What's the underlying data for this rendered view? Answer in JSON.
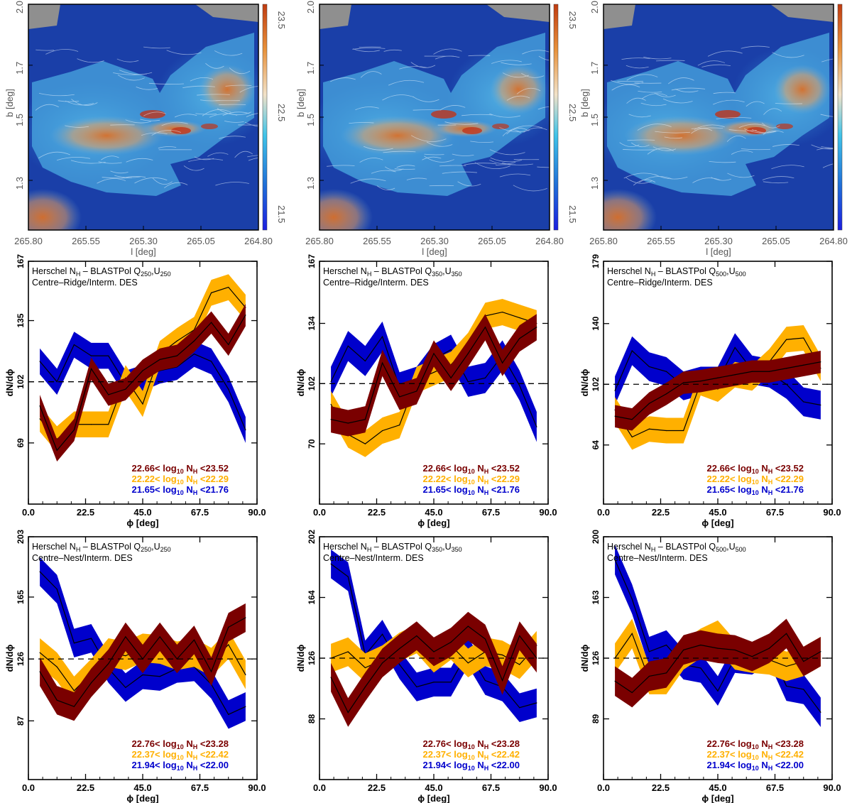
{
  "map_colorbar": {
    "min_label": "21.5",
    "mid_label": "22.5",
    "max_label": "23.5",
    "colors": [
      "#1b1ee0",
      "#1f6fd8",
      "#3fc3e8",
      "#f2e2c8",
      "#e8913a",
      "#c03b10"
    ]
  },
  "map_axes": {
    "xlabel": "l [deg]",
    "ylabel": "b [deg]",
    "xticks": [
      "265.80",
      "265.55",
      "265.30",
      "265.05",
      "264.80"
    ],
    "yticks": [
      "2.0",
      "1.7",
      "1.5",
      "1.3"
    ]
  },
  "colors": {
    "high": "#7a0000",
    "mid": "#ffb000",
    "low": "#0000cc"
  },
  "chart_data": [
    {
      "type": "line",
      "title": "Herschel N_H – BLASTPol Q250,U250",
      "subtitle": "Centre–Ridge/Interm. DES",
      "header_main": "Herschel N",
      "header_sub": "H",
      "header_sep": " – BLASTPol Q",
      "header_band": "250",
      "header_comma": ",U",
      "xlabel": "ϕ [deg]",
      "ylabel": "dN/dϕ",
      "xlim": [
        0,
        90
      ],
      "ylim": [
        36,
        167
      ],
      "xticks": [
        "0.0",
        "22.5",
        "45.0",
        "67.5",
        "90.0"
      ],
      "yticks": [
        69,
        102,
        135,
        167
      ],
      "reference": 102,
      "x": [
        4.5,
        11.25,
        18,
        24.75,
        31.5,
        38.25,
        45,
        51.75,
        58.5,
        65.25,
        72,
        78.75,
        85.5
      ],
      "series": [
        {
          "name": "high",
          "legend_lo": "22.66",
          "legend_hi": "23.52",
          "values": [
            89,
            65,
            76,
            109,
            95,
            98,
            108,
            114,
            116,
            124,
            134,
            122,
            138
          ],
          "half_width": 6
        },
        {
          "name": "mid",
          "legend_lo": "22.22",
          "legend_hi": "22.29",
          "values": [
            82,
            71,
            79,
            79,
            79,
            104,
            90,
            117,
            124,
            130,
            150,
            153,
            142
          ],
          "half_width": 7
        },
        {
          "name": "low",
          "legend_lo": "21.65",
          "legend_hi": "21.76",
          "values": [
            113,
            102,
            122,
            116,
            116,
            101,
            104,
            108,
            110,
            117,
            113,
            98,
            76
          ],
          "half_width": 7
        }
      ]
    },
    {
      "type": "line",
      "title": "Herschel N_H – BLASTPol Q350,U350",
      "subtitle": "Centre–Ridge/Interm. DES",
      "header_main": "Herschel N",
      "header_sub": "H",
      "header_sep": " – BLASTPol Q",
      "header_band": "350",
      "header_comma": ",U",
      "xlabel": "ϕ [deg]",
      "ylabel": "dN/dϕ",
      "xlim": [
        0,
        90
      ],
      "ylim": [
        38,
        167
      ],
      "xticks": [
        "0.0",
        "22.5",
        "45.0",
        "67.5",
        "90.0"
      ],
      "yticks": [
        70,
        102,
        134,
        167
      ],
      "reference": 102,
      "x": [
        4.5,
        11.25,
        18,
        24.75,
        31.5,
        38.25,
        45,
        51.75,
        58.5,
        65.25,
        72,
        78.75,
        85.5
      ],
      "series": [
        {
          "name": "high",
          "legend_lo": "22.66",
          "legend_hi": "23.52",
          "values": [
            83,
            81,
            83,
            113,
            95,
            98,
            118,
            105,
            118,
            132,
            113,
            126,
            132
          ],
          "half_width": 7
        },
        {
          "name": "mid",
          "legend_lo": "22.22",
          "legend_hi": "22.29",
          "values": [
            91,
            75,
            70,
            77,
            80,
            104,
            108,
            112,
            122,
            138,
            140,
            137,
            134
          ],
          "half_width": 7
        },
        {
          "name": "low",
          "legend_lo": "21.65",
          "legend_hi": "21.76",
          "values": [
            103,
            122,
            114,
            127,
            100,
            103,
            115,
            120,
            103,
            105,
            117,
            101,
            79
          ],
          "half_width": 8
        }
      ]
    },
    {
      "type": "line",
      "title": "Herschel N_H – BLASTPol Q500,U500",
      "subtitle": "Centre–Ridge/Interm. DES",
      "header_main": "Herschel N",
      "header_sub": "H",
      "header_sep": " – BLASTPol Q",
      "header_band": "500",
      "header_comma": ",U",
      "xlabel": "ϕ [deg]",
      "ylabel": "dN/dϕ",
      "xlim": [
        0,
        90
      ],
      "ylim": [
        27,
        179
      ],
      "xticks": [
        "0.0",
        "22.5",
        "45.0",
        "67.5",
        "90.0"
      ],
      "yticks": [
        64,
        102,
        140,
        179
      ],
      "reference": 102,
      "x": [
        4.5,
        11.25,
        18,
        24.75,
        31.5,
        38.25,
        45,
        51.75,
        58.5,
        65.25,
        72,
        78.75,
        85.5
      ],
      "series": [
        {
          "name": "high",
          "legend_lo": "22.66",
          "legend_hi": "23.52",
          "values": [
            82,
            80,
            90,
            96,
            103,
            104,
            106,
            108,
            110,
            110,
            112,
            114,
            116
          ],
          "half_width": 7
        },
        {
          "name": "mid",
          "legend_lo": "22.22",
          "legend_hi": "22.29",
          "values": [
            86,
            69,
            74,
            73,
            73,
            103,
            99,
            108,
            106,
            116,
            130,
            131,
            112
          ],
          "half_width": 8
        },
        {
          "name": "low",
          "legend_lo": "21.65",
          "legend_hi": "21.76",
          "values": [
            98,
            123,
            113,
            110,
            101,
            104,
            104,
            125,
            111,
            109,
            102,
            91,
            89
          ],
          "half_width": 9
        }
      ]
    },
    {
      "type": "line",
      "title": "Herschel N_H – BLASTPol Q250,U250",
      "subtitle": "Centre–Nest/Interm. DES",
      "header_main": "Herschel N",
      "header_sub": "H",
      "header_sep": " – BLASTPol Q",
      "header_band": "250",
      "header_comma": ",U",
      "xlabel": "ϕ [deg]",
      "ylabel": "dN/dϕ",
      "xlim": [
        0,
        90
      ],
      "ylim": [
        50,
        203
      ],
      "xticks": [
        "0.0",
        "22.5",
        "45.0",
        "67.5",
        "90.0"
      ],
      "yticks": [
        87,
        126,
        165,
        203
      ],
      "reference": 126,
      "x": [
        4.5,
        11.25,
        18,
        24.75,
        31.5,
        38.25,
        45,
        51.75,
        58.5,
        65.25,
        72,
        78.75,
        85.5
      ],
      "series": [
        {
          "name": "high",
          "legend_lo": "22.76",
          "legend_hi": "23.28",
          "values": [
            118,
            100,
            96,
            111,
            123,
            140,
            126,
            140,
            126,
            138,
            118,
            146,
            152
          ],
          "half_width": 9
        },
        {
          "name": "mid",
          "legend_lo": "22.37",
          "legend_hi": "22.42",
          "values": [
            130,
            121,
            106,
            117,
            130,
            128,
            133,
            132,
            128,
            130,
            124,
            135,
            116
          ],
          "half_width": 9
        },
        {
          "name": "low",
          "legend_lo": "21.94",
          "legend_hi": "22.00",
          "values": [
            181,
            170,
            136,
            139,
            120,
            108,
            116,
            115,
            120,
            121,
            110,
            91,
            96
          ],
          "half_width": 9
        }
      ]
    },
    {
      "type": "line",
      "title": "Herschel N_H – BLASTPol Q350,U350",
      "subtitle": "Centre–Nest/Interm. DES",
      "header_main": "Herschel N",
      "header_sub": "H",
      "header_sep": " – BLASTPol Q",
      "header_band": "350",
      "header_comma": ",U",
      "xlabel": "ϕ [deg]",
      "ylabel": "dN/dϕ",
      "xlim": [
        0,
        90
      ],
      "ylim": [
        50,
        202
      ],
      "xticks": [
        "0.0",
        "22.5",
        "45.0",
        "67.5",
        "90.0"
      ],
      "yticks": [
        88,
        126,
        164,
        202
      ],
      "reference": 126,
      "x": [
        4.5,
        11.25,
        18,
        24.75,
        31.5,
        38.25,
        45,
        51.75,
        58.5,
        65.25,
        72,
        78.75,
        85.5
      ],
      "series": [
        {
          "name": "high",
          "legend_lo": "22.76",
          "legend_hi": "23.28",
          "values": [
            114,
            92,
            108,
            123,
            132,
            140,
            130,
            136,
            146,
            138,
            112,
            140,
            126
          ],
          "half_width": 9
        },
        {
          "name": "mid",
          "legend_lo": "22.37",
          "legend_hi": "22.42",
          "values": [
            126,
            130,
            120,
            125,
            133,
            138,
            126,
            134,
            123,
            130,
            128,
            122,
            134
          ],
          "half_width": 9
        },
        {
          "name": "low",
          "legend_lo": "21.94",
          "legend_hi": "22.00",
          "values": [
            185,
            177,
            128,
            141,
            122,
            108,
            111,
            111,
            130,
            112,
            108,
            95,
            98
          ],
          "half_width": 9
        }
      ]
    },
    {
      "type": "line",
      "title": "Herschel N_H – BLASTPol Q500,U500",
      "subtitle": "Centre–Nest/Interm. DES",
      "header_main": "Herschel N",
      "header_sub": "H",
      "header_sep": " – BLASTPol Q",
      "header_band": "500",
      "header_comma": ",U",
      "xlabel": "ϕ [deg]",
      "ylabel": "dN/dϕ",
      "xlim": [
        0,
        90
      ],
      "ylim": [
        52,
        200
      ],
      "xticks": [
        "0.0",
        "22.5",
        "45.0",
        "67.5",
        "90.0"
      ],
      "yticks": [
        89,
        126,
        163,
        200
      ],
      "reference": 126,
      "x": [
        4.5,
        11.25,
        18,
        24.75,
        31.5,
        38.25,
        45,
        51.75,
        58.5,
        65.25,
        72,
        78.75,
        85.5
      ],
      "series": [
        {
          "name": "high",
          "legend_lo": "22.76",
          "legend_hi": "23.28",
          "values": [
            112,
            105,
            115,
            117,
            131,
            134,
            132,
            131,
            127,
            132,
            141,
            124,
            130
          ],
          "half_width": 9
        },
        {
          "name": "mid",
          "legend_lo": "22.37",
          "legend_hi": "22.42",
          "values": [
            126,
            141,
            113,
            113,
            128,
            135,
            140,
            128,
            126,
            125,
            121,
            124,
            130
          ],
          "half_width": 9
        },
        {
          "name": "low",
          "legend_lo": "21.94",
          "legend_hi": "22.00",
          "values": [
            186,
            162,
            130,
            134,
            122,
            120,
            106,
            126,
            125,
            132,
            109,
            107,
            93
          ],
          "half_width": 9
        }
      ]
    }
  ]
}
